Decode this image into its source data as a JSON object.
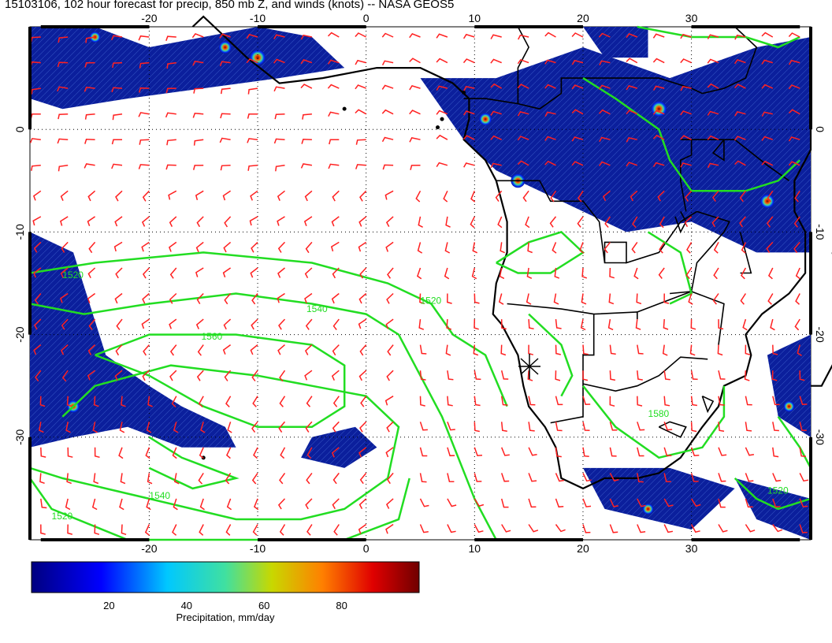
{
  "title": "15103106, 102 hour forecast for precip, 850 mb Z, and winds (knots) -- NASA GEOS5",
  "map": {
    "lon_ticks": [
      "-20",
      "-10",
      "0",
      "10",
      "20",
      "30"
    ],
    "lat_ticks": [
      "0",
      "-10",
      "-20",
      "-30"
    ],
    "lon_range": [
      -31,
      41
    ],
    "lat_range": [
      -40,
      10
    ],
    "contour_labels": [
      "1520",
      "1540",
      "1560",
      "1520",
      "1540",
      "1520",
      "1520",
      "1580"
    ],
    "colors": {
      "wind_barbs": "#ff2020",
      "contours": "#22dd22",
      "coastlines": "#000000",
      "precip_low": "#000080",
      "precip_high": "#800000"
    },
    "marker": "star-marker"
  },
  "colorbar": {
    "ticks": [
      "20",
      "40",
      "60",
      "80"
    ],
    "label": "Precipitation, mm/day",
    "range": [
      0,
      100
    ]
  }
}
